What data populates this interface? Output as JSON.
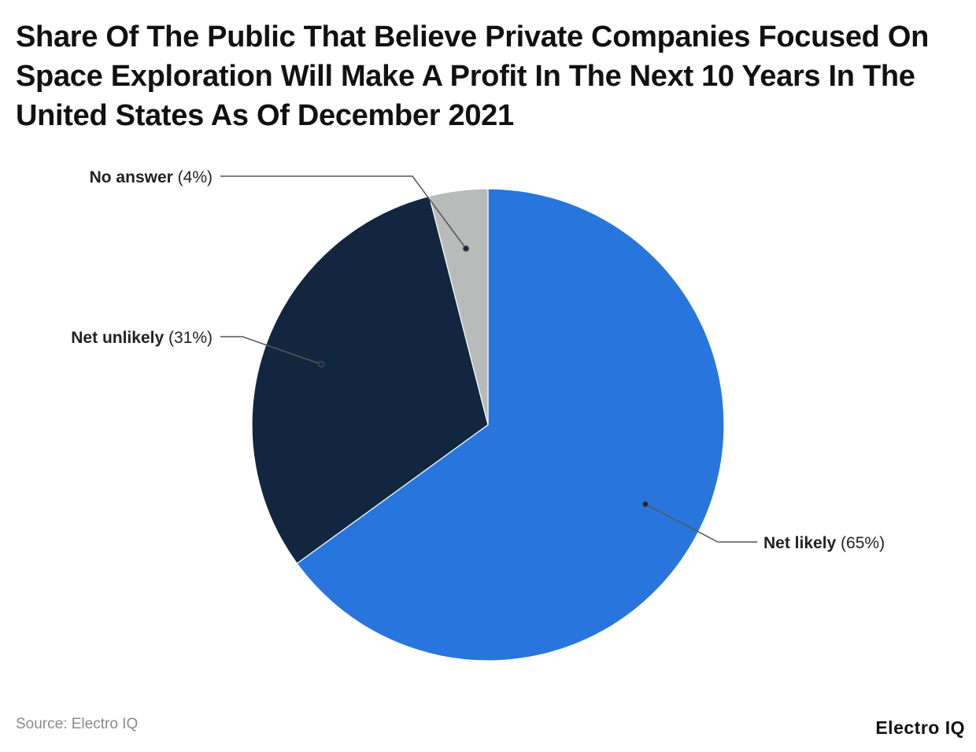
{
  "chart_data": {
    "type": "pie",
    "title": "Share Of The Public That Believe Private Companies Focused On Space Exploration Will Make A Profit In The Next 10 Years In The United States As Of December 2021",
    "slices": [
      {
        "label": "Net likely",
        "value": 65,
        "display": "(65%)",
        "color": "#2876dd"
      },
      {
        "label": "Net unlikely",
        "value": 31,
        "display": "(31%)",
        "color": "#12273f"
      },
      {
        "label": "No answer",
        "value": 4,
        "display": "(4%)",
        "color": "#b9baba"
      }
    ],
    "start": "top",
    "direction": "clockwise",
    "legend": "none (direct labels)"
  },
  "footer": {
    "source": "Source: Electro IQ",
    "logo": "Electro IQ"
  }
}
